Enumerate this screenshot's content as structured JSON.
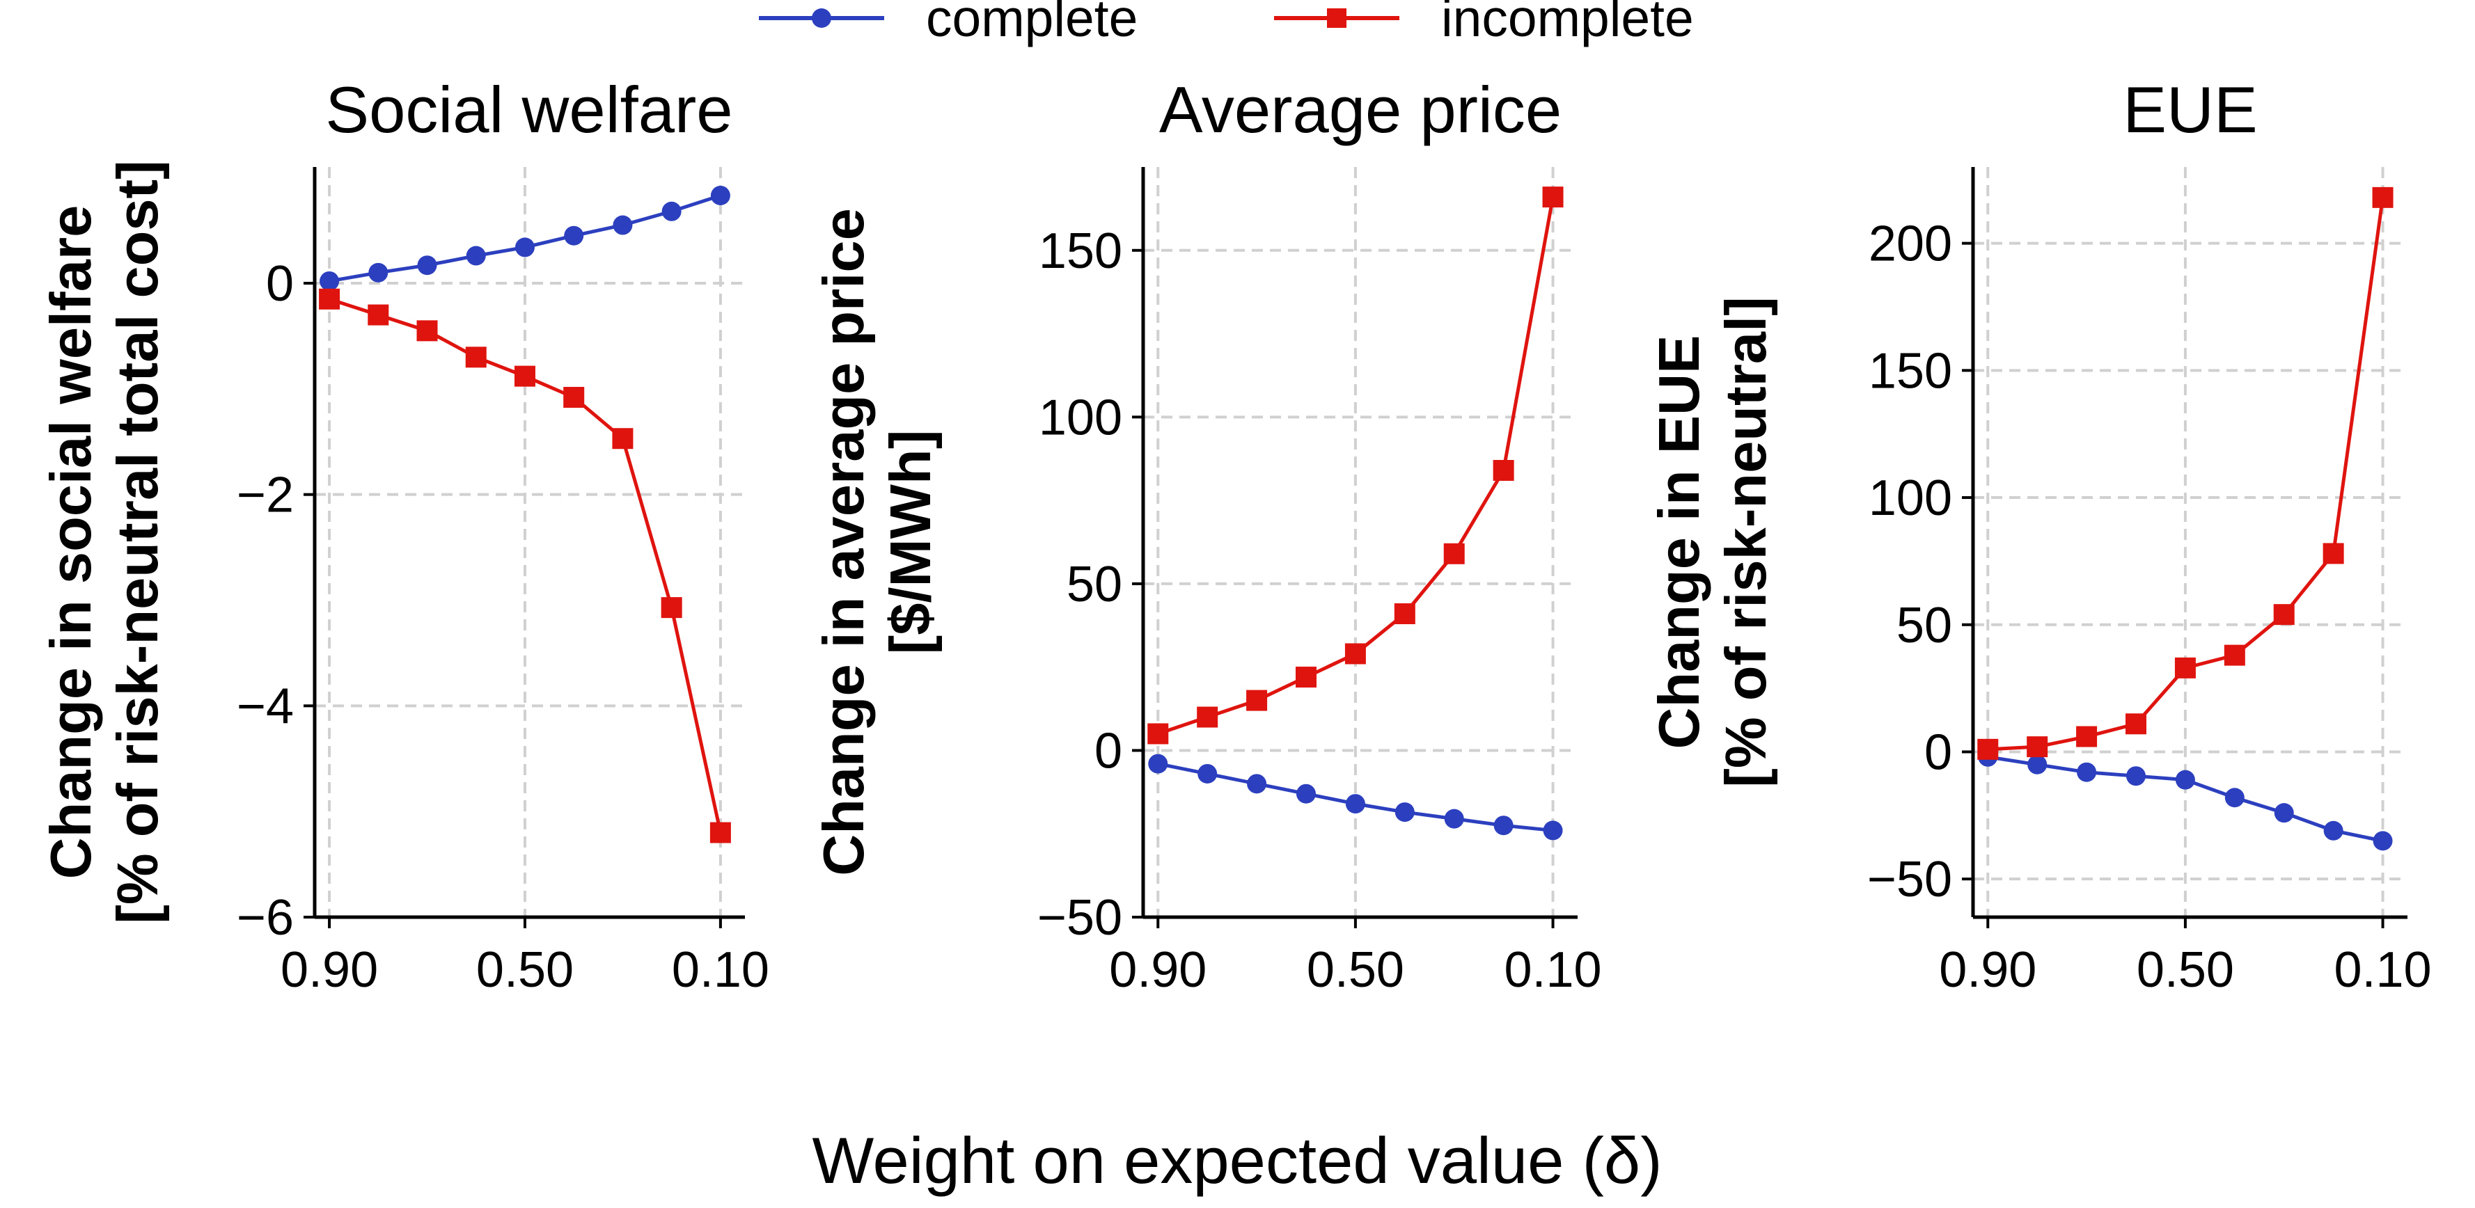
{
  "legend": {
    "items": [
      {
        "label": "complete",
        "color": "#2b3fbf",
        "marker": "circle"
      },
      {
        "label": "incomplete",
        "color": "#e0140f",
        "marker": "square"
      }
    ]
  },
  "xlabel": "Weight on expected value (δ)",
  "chart_data": [
    {
      "type": "line",
      "title": "Social welfare",
      "ylabel": [
        "Change in social welfare",
        "[% of risk-neutral total cost]"
      ],
      "x": [
        0.9,
        0.8,
        0.7,
        0.6,
        0.5,
        0.4,
        0.3,
        0.2,
        0.1
      ],
      "xlim": [
        0.93,
        0.05
      ],
      "xticks": [
        0.9,
        0.5,
        0.1
      ],
      "xtick_labels": [
        "0.90",
        "0.50",
        "0.10"
      ],
      "ylim": [
        -6,
        1.1
      ],
      "yticks": [
        0,
        -2,
        -4,
        -6
      ],
      "ytick_labels": [
        "0",
        "−2",
        "−4",
        "−6"
      ],
      "series": [
        {
          "name": "complete",
          "values": [
            0.02,
            0.1,
            0.17,
            0.26,
            0.34,
            0.45,
            0.55,
            0.68,
            0.83
          ]
        },
        {
          "name": "incomplete",
          "values": [
            -0.15,
            -0.3,
            -0.45,
            -0.7,
            -0.88,
            -1.08,
            -1.47,
            -3.07,
            -5.2
          ]
        }
      ]
    },
    {
      "type": "line",
      "title": "Average price",
      "ylabel": [
        "Change in average price",
        "[$/MWh]"
      ],
      "x": [
        0.9,
        0.8,
        0.7,
        0.6,
        0.5,
        0.4,
        0.3,
        0.2,
        0.1
      ],
      "xlim": [
        0.93,
        0.05
      ],
      "xticks": [
        0.9,
        0.5,
        0.1
      ],
      "xtick_labels": [
        "0.90",
        "0.50",
        "0.10"
      ],
      "ylim": [
        -50,
        175
      ],
      "yticks": [
        150,
        100,
        50,
        0,
        -50
      ],
      "ytick_labels": [
        "150",
        "100",
        "50",
        "0",
        "−50"
      ],
      "series": [
        {
          "name": "complete",
          "values": [
            -4,
            -7,
            -10,
            -13,
            -16,
            -18.5,
            -20.5,
            -22.5,
            -24
          ]
        },
        {
          "name": "incomplete",
          "values": [
            5,
            10,
            15,
            22,
            29,
            41,
            59,
            84,
            166
          ]
        }
      ]
    },
    {
      "type": "line",
      "title": "EUE",
      "ylabel": [
        "Change in EUE",
        "[% of risk-neutral]"
      ],
      "x": [
        0.9,
        0.8,
        0.7,
        0.6,
        0.5,
        0.4,
        0.3,
        0.2,
        0.1
      ],
      "xlim": [
        0.93,
        0.05
      ],
      "xticks": [
        0.9,
        0.5,
        0.1
      ],
      "xtick_labels": [
        "0.90",
        "0.50",
        "0.10"
      ],
      "ylim": [
        -65,
        230
      ],
      "yticks": [
        200,
        150,
        100,
        50,
        0,
        -50
      ],
      "ytick_labels": [
        "200",
        "150",
        "100",
        "50",
        "0",
        "−50"
      ],
      "series": [
        {
          "name": "complete",
          "values": [
            -2,
            -5,
            -8,
            -9.5,
            -11,
            -18,
            -24,
            -31,
            -35
          ]
        },
        {
          "name": "incomplete",
          "values": [
            1,
            2,
            6,
            11,
            33,
            38,
            54,
            78,
            218
          ]
        }
      ]
    }
  ]
}
